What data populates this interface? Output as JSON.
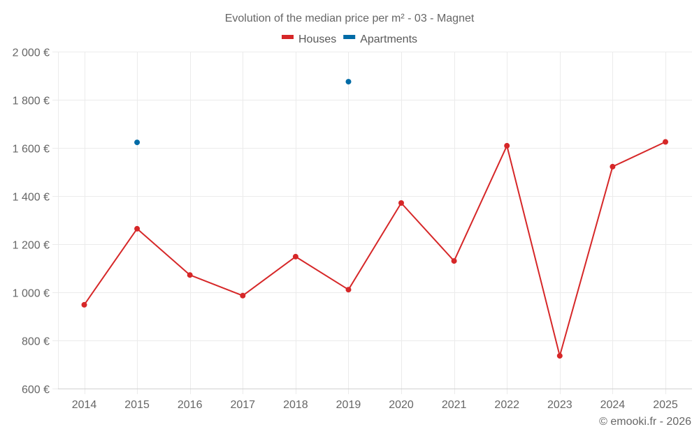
{
  "chart_data": {
    "type": "line",
    "title": "Evolution of the median price per m² - 03 - Magnet",
    "xlabel": "",
    "ylabel": "",
    "x": [
      "2014",
      "2015",
      "2016",
      "2017",
      "2018",
      "2019",
      "2020",
      "2021",
      "2022",
      "2023",
      "2024",
      "2025"
    ],
    "ylim": [
      600,
      2000
    ],
    "yticks": [
      600,
      800,
      1000,
      1200,
      1400,
      1600,
      1800,
      2000
    ],
    "ytick_labels": [
      "600 €",
      "800 €",
      "1 000 €",
      "1 200 €",
      "1 400 €",
      "1 600 €",
      "1 800 €",
      "2 000 €"
    ],
    "grid": true,
    "legend_position": "top-center",
    "series": [
      {
        "name": "Houses",
        "color": "#d62728",
        "values": [
          948,
          1264,
          1072,
          986,
          1148,
          1011,
          1371,
          1130,
          1609,
          736,
          1522,
          1625
        ]
      },
      {
        "name": "Apartments",
        "color": "#006ba6",
        "values": [
          null,
          1623,
          null,
          null,
          null,
          1875,
          null,
          null,
          null,
          null,
          null,
          null
        ]
      }
    ],
    "credit": "© emooki.fr - 2026"
  }
}
